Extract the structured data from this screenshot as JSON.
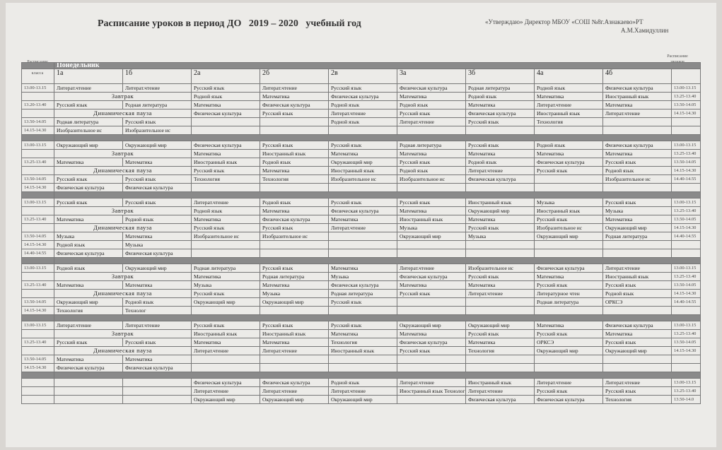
{
  "header": {
    "title": "Расписание уроков в период ДО   2019 – 2020   учебный год",
    "approve": "«Утверждаю» Директор МБОУ «СОШ №8г.Азнакаево»РТ",
    "director": "А.М.Хамидуллин"
  },
  "table": {
    "left_head": "Расписание звонков 1 класса",
    "right_head": "Расписание звонков",
    "classes": [
      "1а",
      "1б",
      "2а",
      "2б",
      "2в",
      "3а",
      "3б",
      "4а",
      "4б"
    ],
    "blocks": [
      {
        "day": "Понедельник",
        "rows": [
          {
            "left": "13.00-13.15",
            "cells": [
              "Литерат.чтение",
              "Литерат.чтение",
              "Русский язык",
              "Литерат.чтение",
              "Русский язык",
              "Физическая культура",
              "Родная литература",
              "Родной язык",
              "Физическая культура"
            ],
            "right": "13.00-13.15"
          },
          {
            "break": "Завтрак",
            "cells": [
              "Родной язык",
              "Математика",
              "Физическая культура",
              "Математика",
              "Родной язык",
              "Математика",
              "Иностранный язык"
            ],
            "right": "13.25-13.40"
          },
          {
            "left": "13.20-13.40",
            "cells": [
              "Русский язык",
              "Родная литература",
              "Математика",
              "Физическая культура",
              "Родной язык",
              "Родной язык",
              "Математика",
              "Литерат.чтение",
              "Математика"
            ],
            "right": "13.50-14.05"
          },
          {
            "break": "Динамическая  пауза",
            "cells": [
              "Физическая культура",
              "Русский язык",
              "Литерат.чтение",
              "Русский язык",
              "Физическая культура",
              "Иностранный язык",
              "Литерат.чтение"
            ],
            "right": "14.15-14.30"
          },
          {
            "left": "13.50-14.05",
            "cells": [
              "Родная литература",
              "Русский язык",
              null,
              null,
              "Родной язык",
              "Литерат.чтение",
              "Русский язык",
              "Технология",
              null
            ]
          },
          {
            "left": "14.15-14.30",
            "cells": [
              "Изобразительное ис",
              "Изобразительное ис",
              null,
              null,
              null,
              null,
              null,
              null,
              null
            ]
          }
        ]
      },
      {
        "rows": [
          {
            "left": "13.00-13.15",
            "cells": [
              "Окружающий мир",
              "Окружающий мир",
              "Физическая культура",
              "Русский язык",
              "Русский язык",
              "Родная литература",
              "Русский язык",
              "Родной язык",
              "Физическая культура"
            ],
            "right": "13.00-13.15"
          },
          {
            "break": "Завтрак",
            "cells": [
              "Математика",
              "Иностранный язык",
              "Математика",
              "Математика",
              "Математика",
              "Математика",
              "Математика"
            ],
            "right": "13.25-13.40"
          },
          {
            "left": "13.25-13.40",
            "cells": [
              "Математика",
              "Математика",
              "Иностранный язык",
              "Родной язык",
              "Окружающий мир",
              "Русский язык",
              "Родной язык",
              "Физическая культура",
              "Русский язык"
            ],
            "right": "13.50-14.05"
          },
          {
            "break": "Динамическая  пауза",
            "cells": [
              "Русский язык",
              "Математика",
              "Иностранный язык",
              "Родной язык",
              "Литерат.чтение",
              "Русский язык",
              "Родной язык"
            ],
            "right": "14.15-14.30"
          },
          {
            "left": "13.50-14.05",
            "cells": [
              "Русский язык",
              "Русский язык",
              "Технология",
              "Технология",
              "Изобразительное ис",
              "Изобразительное ис",
              "Физическая культура",
              null,
              "Изобразительное ис"
            ],
            "right": "14.40-14.55"
          },
          {
            "left": "14.15-14.30",
            "cells": [
              "Физическая культура",
              "Физическая культура",
              null,
              null,
              null,
              null,
              null,
              null,
              null
            ]
          }
        ]
      },
      {
        "rows": [
          {
            "left": "13.00-13.15",
            "cells": [
              "Русский язык",
              "Русский язык",
              "Литерат.чтение",
              "Родной язык",
              "Русский язык",
              "Русский язык",
              "Иностранный язык",
              "Музыка",
              "Русский язык"
            ],
            "right": "13.00-13.15"
          },
          {
            "break": "Завтрак",
            "cells": [
              "Родной язык",
              "Математика",
              "Физическая культура",
              "Математика",
              "Окружающий мир",
              "Иностранный язык",
              "Музыка"
            ],
            "right": "13.25-13.40"
          },
          {
            "left": "13.25-13.40",
            "cells": [
              "Математика",
              "Родной язык",
              "Математика",
              "Физическая культура",
              "Математика",
              "Иностранный язык",
              "Математика",
              "Русский язык",
              "Математика"
            ],
            "right": "13.50-14.05"
          },
          {
            "break": "Динамическая  пауза",
            "cells": [
              "Русский язык",
              "Русский язык",
              "Литерат.чтение",
              "Музыка",
              "Русский язык",
              "Изобразительное ис",
              "Окружающий мир"
            ],
            "right": "14.15-14.30"
          },
          {
            "left": "13.50-14.05",
            "cells": [
              "Музыка",
              "Математика",
              "Изобразительное ис",
              "Изобразительное ис",
              null,
              "Окружающий мир",
              "Музыка",
              "Окружающий мир",
              "Родная литература"
            ],
            "right": "14.40-14.55"
          },
          {
            "left": "14.15-14.30",
            "cells": [
              "Родной язык",
              "Музыка",
              null,
              null,
              null,
              null,
              null,
              null,
              null
            ]
          },
          {
            "left": "14.40-14.55",
            "cells": [
              "Физическая культура",
              "Физическая культура",
              null,
              null,
              null,
              null,
              null,
              null,
              null
            ]
          }
        ]
      },
      {
        "rows": [
          {
            "left": "13.00-13.15",
            "cells": [
              "Родной язык",
              "Окружающий мир",
              "Родная литература",
              "Русский язык",
              "Математика",
              "Литерат.чтение",
              "Изобразительное ис",
              "Физическая культура",
              "Литерат.чтение"
            ],
            "right": "13.00-13.15"
          },
          {
            "break": "Завтрак",
            "cells": [
              "Математика",
              "Родная литература",
              "Музыка",
              "Физическая культура",
              "Русский язык",
              "Математика",
              "Иностранный язык"
            ],
            "right": "13.25-13.40"
          },
          {
            "left": "13.25-13.40",
            "cells": [
              "Математика",
              "Математика",
              "Музыка",
              "Математика",
              "Физическая культура",
              "Математика",
              "Математика",
              "Русский язык",
              "Русский язык"
            ],
            "right": "13.50-14.05"
          },
          {
            "break": "Динамическая  пауза",
            "cells": [
              "Русский язык",
              "Музыка",
              "Родная литература",
              "Русский язык",
              "Литерат.чтение",
              "Литературное чтен",
              "Родной язык"
            ],
            "right": "14.15-14.30"
          },
          {
            "left": "13.50-14.05",
            "cells": [
              "Окружающий мир",
              "Родной язык",
              "Окружающий мир",
              "Окружающий мир",
              "Русский язык",
              null,
              null,
              "Родная литература",
              "ОРКСЭ"
            ],
            "right": "14.40-14.55"
          },
          {
            "left": "14.15-14.30",
            "cells": [
              "Технология",
              "Технолог",
              null,
              null,
              null,
              null,
              null,
              null,
              null
            ]
          }
        ]
      },
      {
        "rows": [
          {
            "left": "13.00-13.15",
            "cells": [
              "Литерат.чтение",
              "Литерат.чтение",
              "Русский язык",
              "Русский язык",
              "Русский язык",
              "Окружающий мир",
              "Окружающий мир",
              "Математика",
              "Физическая культура"
            ],
            "right": "13.00-13.15"
          },
          {
            "break": "Завтрак",
            "cells": [
              "Иностранный язык",
              "Иностранный язык",
              "Математика",
              "Математика",
              "Русский язык",
              "Русский язык",
              "Математика"
            ],
            "right": "13.25-13.40"
          },
          {
            "left": "13.25-13.40",
            "cells": [
              "Русский язык",
              "Русский язык",
              "Математика",
              "Математика",
              "Технология",
              "Физическая культура",
              "Математика",
              "ОРКСЭ",
              "Русский язык"
            ],
            "right": "13.50-14.05"
          },
          {
            "break": "Динамическая  пауза",
            "cells": [
              "Литерат.чтение",
              "Литерат.чтение",
              "Иностранный язык",
              "Русский язык",
              "Технология",
              "Окружающий мир",
              "Окружающий мир"
            ],
            "right": "14.15-14.30"
          },
          {
            "left": "13.50-14.05",
            "cells": [
              "Математика",
              "Математика",
              null,
              null,
              null,
              null,
              null,
              null,
              null
            ]
          },
          {
            "left": "14.15-14.30",
            "cells": [
              "Физическая культура",
              "Физическая культура",
              null,
              null,
              null,
              null,
              null,
              null,
              null
            ]
          }
        ]
      },
      {
        "rows": [
          {
            "cells": [
              null,
              null,
              "Физическая культура",
              "Физическая культура",
              "Родной язык",
              "Литерат.чтение",
              "Иностранный язык",
              "Литерат.чтение",
              "Литерат.чтение"
            ],
            "right": "13.00-13.15"
          },
          {
            "cells": [
              null,
              null,
              "Литерат.чтение",
              "Литерат.чтение",
              "Литерат.чтение",
              "Иностранный язык Технология",
              "Литерат.чтение",
              "Русский язык",
              "Русский язык"
            ],
            "right": "13.25-13.40"
          },
          {
            "cells": [
              null,
              null,
              "Окружающий мир",
              "Окружающий мир",
              "Окружающий мир",
              null,
              "Физическая культура",
              "Физическая культура",
              "Технология"
            ],
            "right": "13.50-14.0"
          }
        ]
      }
    ]
  }
}
